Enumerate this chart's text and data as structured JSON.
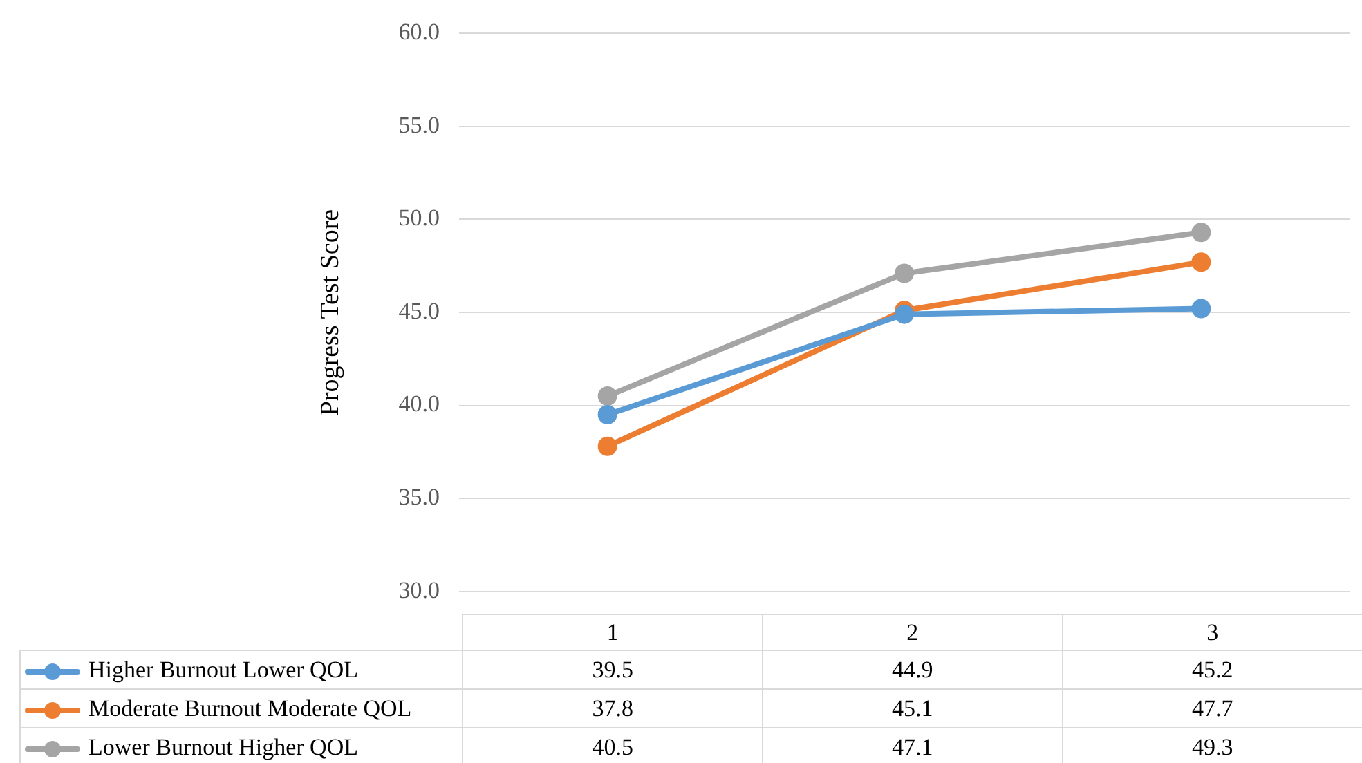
{
  "chart_data": {
    "type": "line",
    "ylabel": "Progress Test Score",
    "categories": [
      "1",
      "2",
      "3"
    ],
    "series": [
      {
        "name": "Higher Burnout Lower QOL",
        "color": "#5b9bd5",
        "values": [
          39.5,
          44.9,
          45.2
        ]
      },
      {
        "name": "Moderate Burnout Moderate QOL",
        "color": "#ed7d31",
        "values": [
          37.8,
          45.1,
          47.7
        ]
      },
      {
        "name": "Lower Burnout Higher QOL",
        "color": "#a5a5a5",
        "values": [
          40.5,
          47.1,
          49.3
        ]
      }
    ],
    "ylim": [
      30,
      60
    ],
    "yticks": [
      {
        "value": 30,
        "label": "30.0"
      },
      {
        "value": 35,
        "label": "35.0"
      },
      {
        "value": 40,
        "label": "40.0"
      },
      {
        "value": 45,
        "label": "45.0"
      },
      {
        "value": 50,
        "label": "50.0"
      },
      {
        "value": 55,
        "label": "55.0"
      },
      {
        "value": 60,
        "label": "60.0"
      }
    ],
    "grid": "y",
    "legend": "bottom",
    "data_labels": true,
    "marker": "circle",
    "line_style": "solid"
  }
}
